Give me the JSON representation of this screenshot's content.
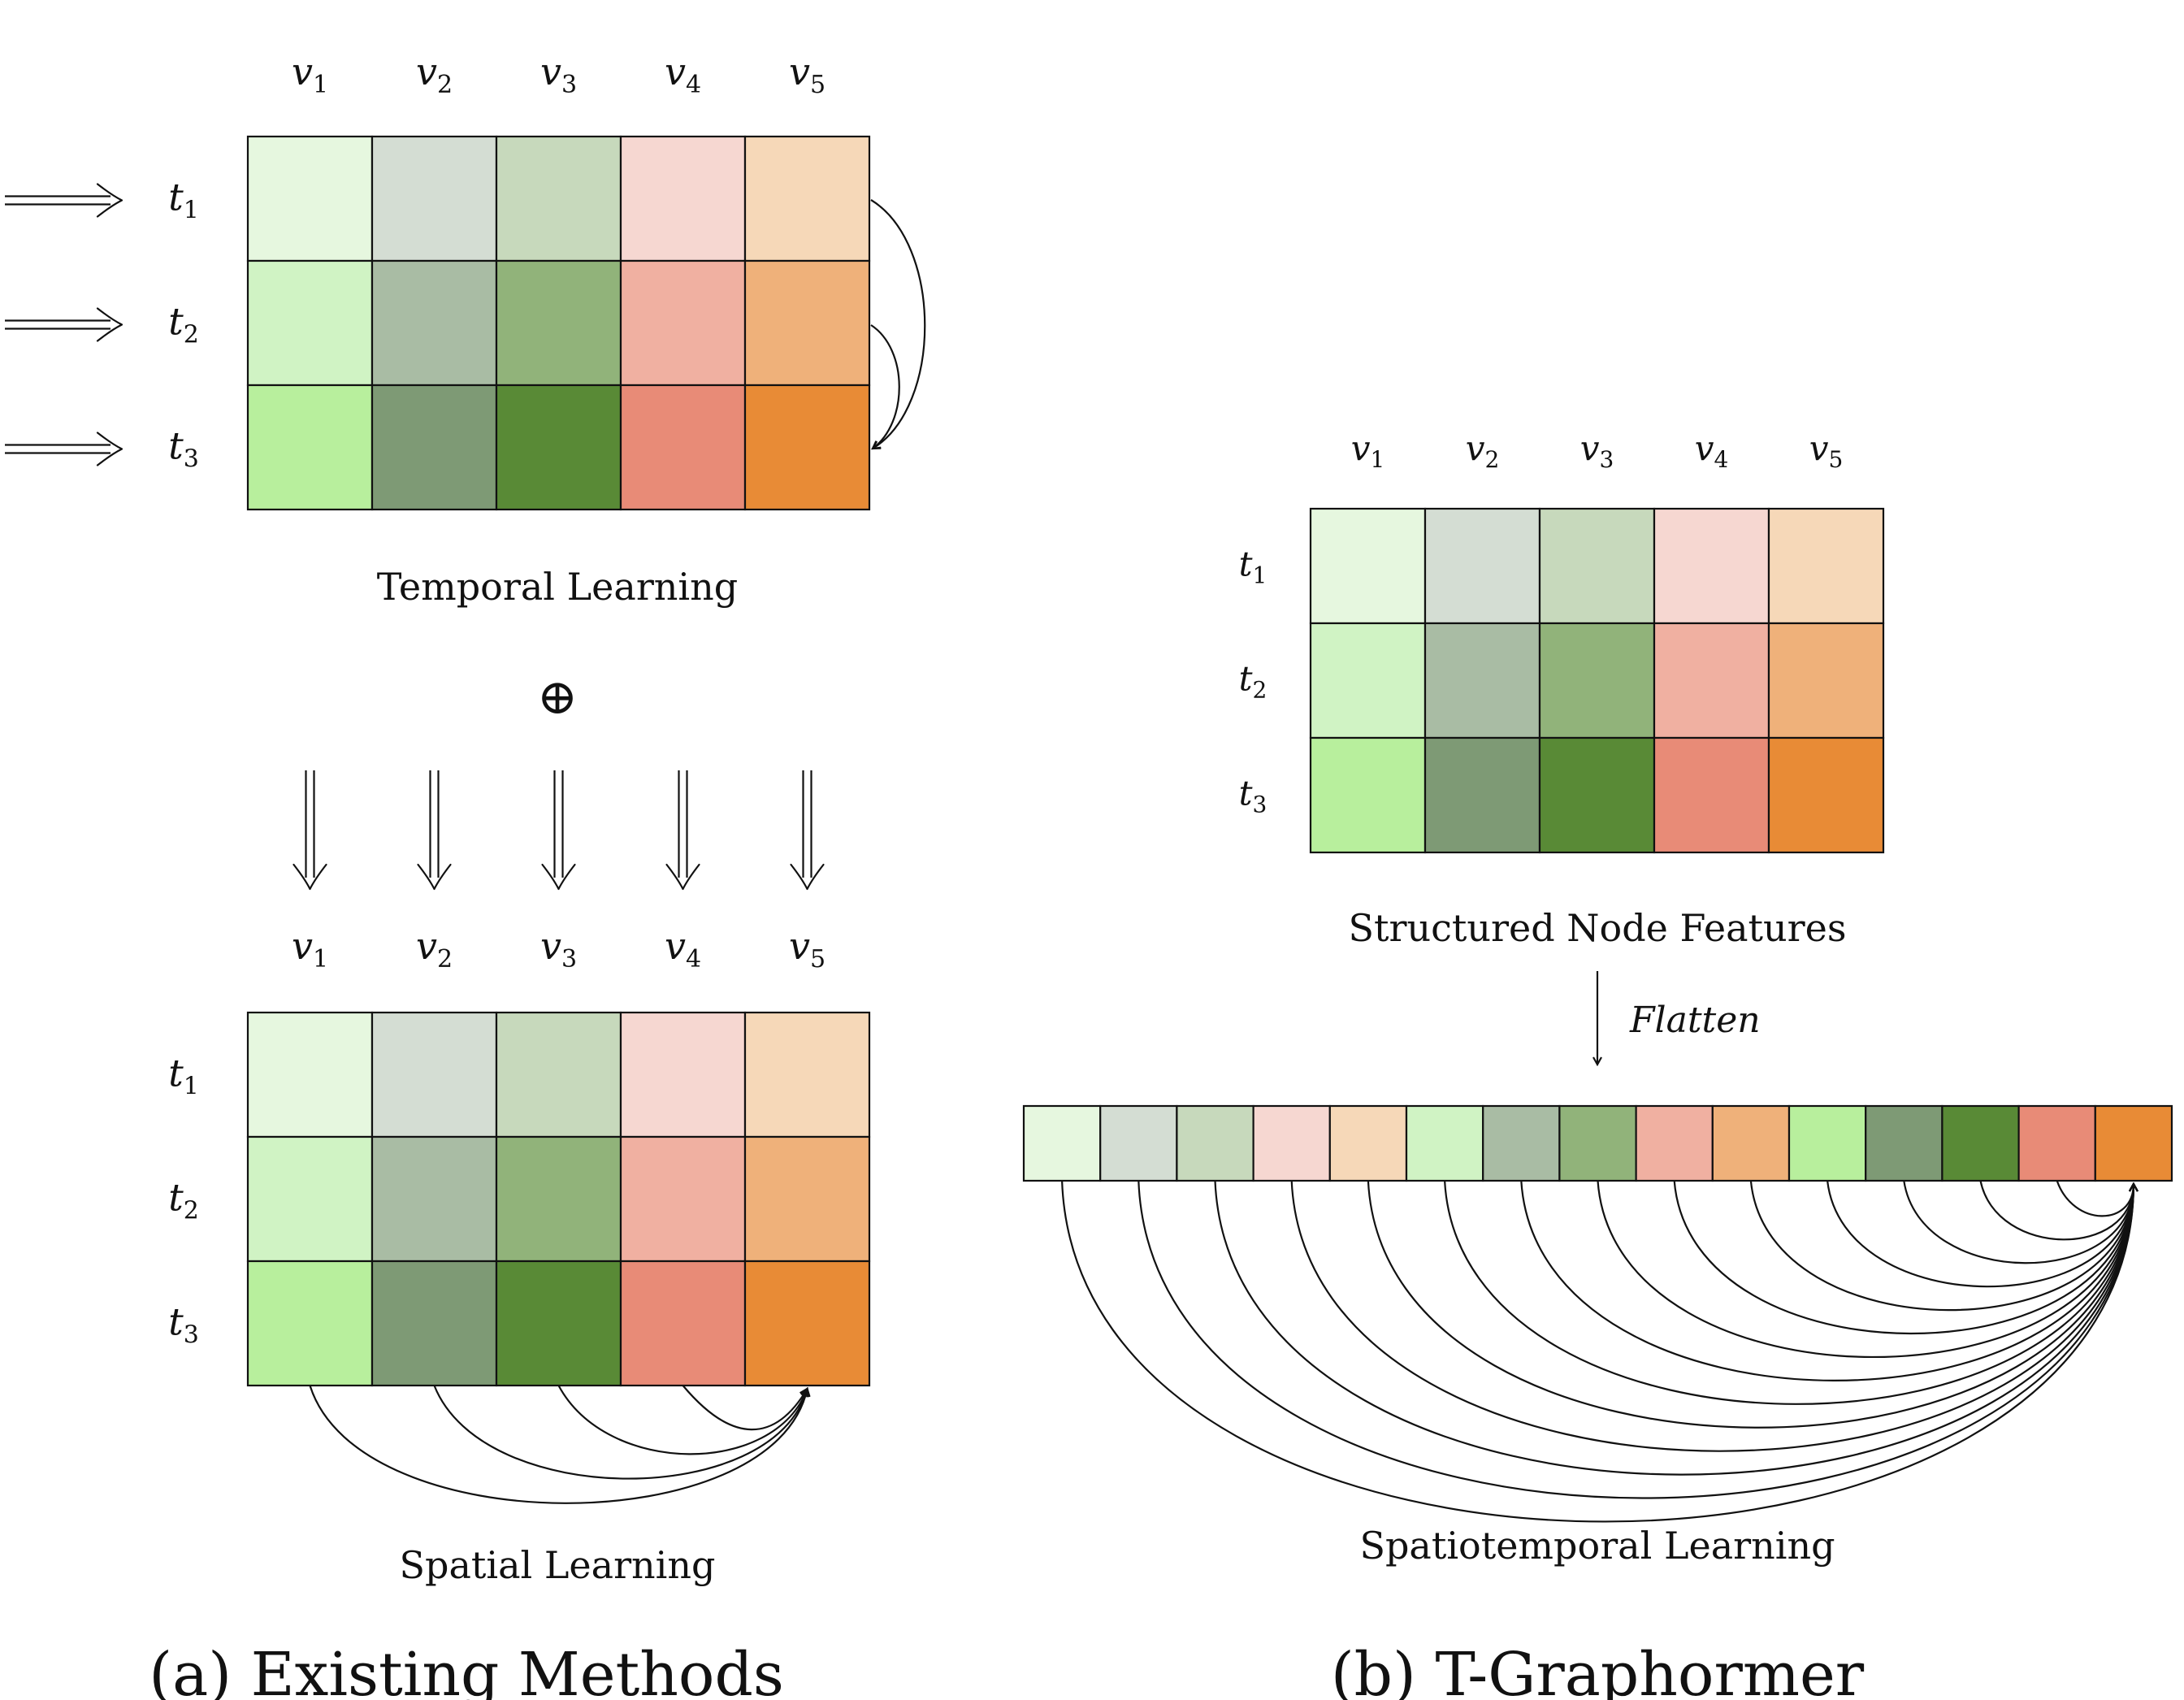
{
  "panel_a": {
    "caption": "(a) Existing Methods",
    "columns": [
      {
        "var": "v",
        "sub": "1"
      },
      {
        "var": "v",
        "sub": "2"
      },
      {
        "var": "v",
        "sub": "3"
      },
      {
        "var": "v",
        "sub": "4"
      },
      {
        "var": "v",
        "sub": "5"
      }
    ],
    "rows": [
      {
        "var": "t",
        "sub": "1"
      },
      {
        "var": "t",
        "sub": "2"
      },
      {
        "var": "t",
        "sub": "3"
      }
    ],
    "temporal_label": "Temporal Learning",
    "combine_symbol": "⊕",
    "spatial_label": "Spatial Learning"
  },
  "panel_b": {
    "caption": "(b) T-Graphormer",
    "columns": [
      {
        "var": "v",
        "sub": "1"
      },
      {
        "var": "v",
        "sub": "2"
      },
      {
        "var": "v",
        "sub": "3"
      },
      {
        "var": "v",
        "sub": "4"
      },
      {
        "var": "v",
        "sub": "5"
      }
    ],
    "rows": [
      {
        "var": "t",
        "sub": "1"
      },
      {
        "var": "t",
        "sub": "2"
      },
      {
        "var": "t",
        "sub": "3"
      }
    ],
    "grid_label": "Structured Node Features",
    "flatten_label": "Flatten",
    "sequence_label": "Spatiotemporal Learning"
  },
  "colors": {
    "grid": [
      [
        "#e6f7df",
        "#d4ddd3",
        "#c7d9bc",
        "#f6d7d1",
        "#f6d8b8"
      ],
      [
        "#d0f3c4",
        "#a9bca4",
        "#91b37a",
        "#f0b0a1",
        "#efb17a"
      ],
      [
        "#b8ef9d",
        "#7e9a75",
        "#598a36",
        "#e88b77",
        "#e88b36"
      ]
    ]
  }
}
